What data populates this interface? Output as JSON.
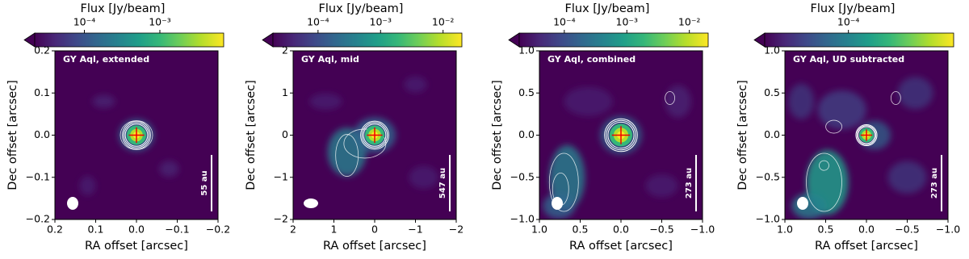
{
  "chart_data": [
    {
      "type": "image",
      "title": "Flux [Jy/beam]",
      "label": "GY Aql, extended",
      "scale_bar": "55 au",
      "xlabel": "RA offset [arcsec]",
      "ylabel": "Dec offset [arcsec]",
      "xlim": [
        0.2,
        -0.2
      ],
      "ylim": [
        -0.2,
        0.2
      ],
      "xticks": [
        0.2,
        0.1,
        {
          "value": 0,
          "label": "0.0"
        },
        {
          "value": -0.1,
          "label": "−0.1"
        },
        {
          "value": -0.2,
          "label": "−0.2"
        }
      ],
      "yticks": [
        {
          "value": -0.2,
          "label": "−0.2"
        },
        {
          "value": -0.1,
          "label": "−0.1"
        },
        {
          "value": 0,
          "label": "0.0"
        },
        0.1,
        0.2
      ],
      "colorbar": {
        "lim": [
          2.2e-05,
          0.007
        ],
        "log": true,
        "ticks": [
          {
            "value": 0.0001,
            "label": "10⁻⁴"
          },
          {
            "value": 0.001,
            "label": "10⁻³"
          }
        ]
      }
    },
    {
      "type": "image",
      "title": "Flux [Jy/beam]",
      "label": "GY Aql, mid",
      "scale_bar": "547 au",
      "xlabel": "RA offset [arcsec]",
      "ylabel": "Dec offset [arcsec]",
      "xlim": [
        2,
        -2
      ],
      "ylim": [
        -2,
        2
      ],
      "xticks": [
        2,
        1,
        0,
        {
          "value": -1,
          "label": "−1"
        },
        {
          "value": -2,
          "label": "−2"
        }
      ],
      "yticks": [
        {
          "value": -2,
          "label": "−2"
        },
        {
          "value": -1,
          "label": "−1"
        },
        0,
        1,
        2
      ],
      "colorbar": {
        "lim": [
          1.9e-05,
          0.02
        ],
        "log": true,
        "ticks": [
          {
            "value": 0.0001,
            "label": "10⁻⁴"
          },
          {
            "value": 0.001,
            "label": "10⁻³"
          },
          {
            "value": 0.01,
            "label": "10⁻²"
          }
        ]
      }
    },
    {
      "type": "image",
      "title": "Flux [Jy/beam]",
      "label": "GY Aql, combined",
      "scale_bar": "273 au",
      "xlabel": "RA offset [arcsec]",
      "ylabel": "Dec offset [arcsec]",
      "xlim": [
        1,
        -1
      ],
      "ylim": [
        -1,
        1
      ],
      "xticks": [
        {
          "value": 1,
          "label": "1.0"
        },
        0.5,
        {
          "value": 0,
          "label": "0.0"
        },
        {
          "value": -0.5,
          "label": "−0.5"
        },
        {
          "value": -1,
          "label": "−1.0"
        }
      ],
      "yticks": [
        {
          "value": -1,
          "label": "−1.0"
        },
        {
          "value": -0.5,
          "label": "−0.5"
        },
        {
          "value": 0,
          "label": "0.0"
        },
        0.5,
        {
          "value": 1,
          "label": "1.0"
        }
      ],
      "colorbar": {
        "lim": [
          1.9e-05,
          0.02
        ],
        "log": true,
        "ticks": [
          {
            "value": 0.0001,
            "label": "10⁻⁴"
          },
          {
            "value": 0.001,
            "label": "10⁻³"
          },
          {
            "value": 0.01,
            "label": "10⁻²"
          }
        ]
      }
    },
    {
      "type": "image",
      "title": "Flux [Jy/beam]",
      "label": "GY Aql, UD subtracted",
      "scale_bar": "273 au",
      "xlabel": "RA offset [arcsec]",
      "ylabel": "Dec offset [arcsec]",
      "xlim": [
        1,
        -1
      ],
      "ylim": [
        -1,
        1
      ],
      "xticks": [
        {
          "value": 1,
          "label": "1.0"
        },
        0.5,
        {
          "value": 0,
          "label": "0.0"
        },
        {
          "value": -0.5,
          "label": "−0.5"
        },
        {
          "value": -1,
          "label": "−1.0"
        }
      ],
      "yticks": [
        {
          "value": -1,
          "label": "−1.0"
        },
        {
          "value": -0.5,
          "label": "−0.5"
        },
        {
          "value": 0,
          "label": "0.0"
        },
        0.5,
        {
          "value": 1,
          "label": "1.0"
        }
      ],
      "colorbar": {
        "lim": [
          1.3e-05,
          0.0013
        ],
        "log": true,
        "ticks": [
          {
            "value": 0.0001,
            "label": "10⁻⁴"
          }
        ]
      }
    }
  ]
}
